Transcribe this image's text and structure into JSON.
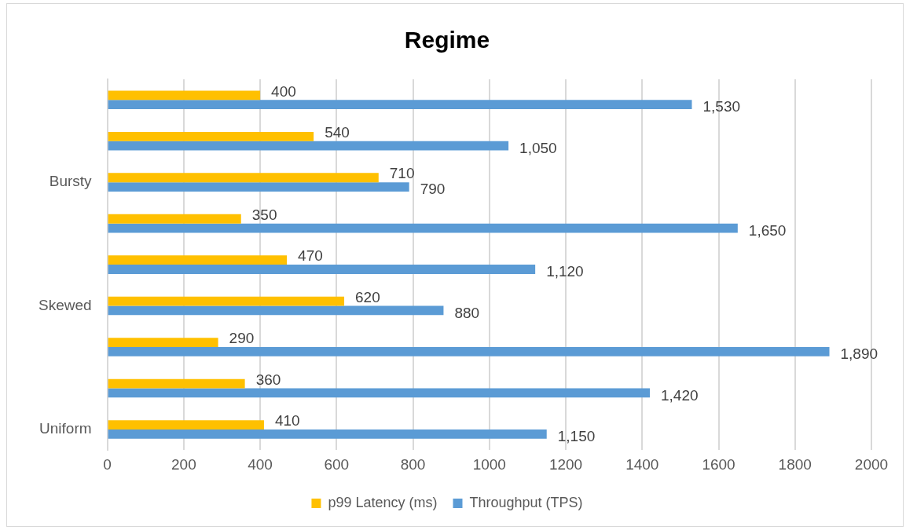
{
  "chart_data": {
    "type": "bar",
    "orientation": "horizontal",
    "title": "Regime",
    "categories": [
      null,
      null,
      "Bursty",
      null,
      null,
      "Skewed",
      null,
      null,
      "Uniform"
    ],
    "series": [
      {
        "name": "p99 Latency (ms)",
        "color": "#ffc000",
        "values": [
          400,
          540,
          710,
          350,
          470,
          620,
          290,
          360,
          410
        ],
        "value_labels": [
          "400",
          "540",
          "710",
          "350",
          "470",
          "620",
          "290",
          "360",
          "410"
        ]
      },
      {
        "name": "Throughput (TPS)",
        "color": "#5b9bd5",
        "values": [
          1530,
          1050,
          790,
          1650,
          1120,
          880,
          1890,
          1420,
          1150
        ],
        "value_labels": [
          "1,530",
          "1,050",
          "790",
          "1,650",
          "1,120",
          "880",
          "1,890",
          "1,420",
          "1,150"
        ]
      }
    ],
    "xlim": [
      0,
      2000
    ],
    "xticks": [
      0,
      200,
      400,
      600,
      800,
      1000,
      1200,
      1400,
      1600,
      1800,
      2000
    ],
    "grid": "x",
    "legend": "bottom"
  }
}
